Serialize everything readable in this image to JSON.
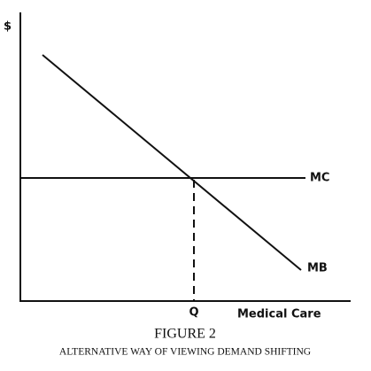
{
  "diagram": {
    "y_axis_label": "$",
    "x_axis_label": "Medical Care",
    "quantity_label": "Q",
    "curves": [
      {
        "label": "MC"
      },
      {
        "label": "MB"
      }
    ],
    "figure_label": "FIGURE 2",
    "caption": "ALTERNATIVE WAY OF VIEWING DEMAND SHIFTING"
  }
}
